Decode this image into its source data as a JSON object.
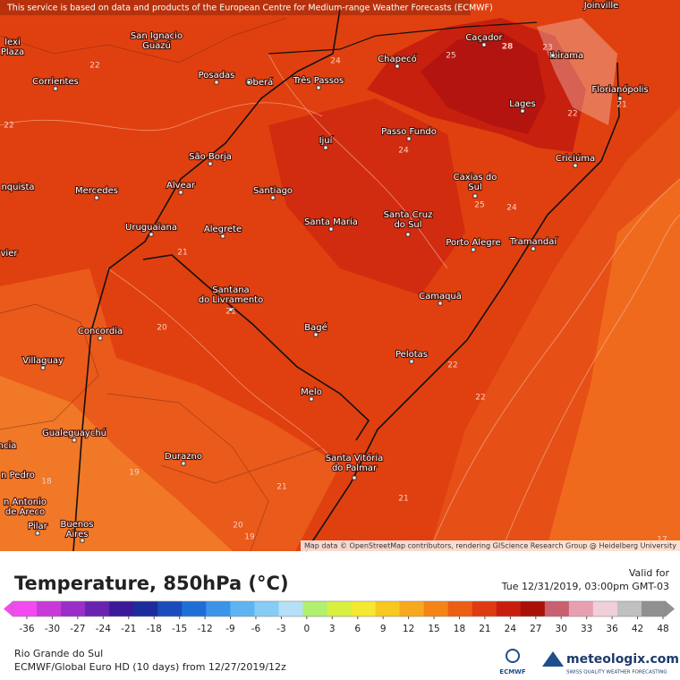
{
  "header_note": "This service is based on data and products of the European Centre for Medium-range Weather Forecasts (ECMWF)",
  "attribution": "Map data © OpenStreetMap contributors, rendering GIScience Research Group @ Heidelberg University",
  "places": [
    {
      "lines": [
        "Joinville"
      ]
    },
    {
      "lines": [
        "Caçador"
      ]
    },
    {
      "lines": [
        "Chapecó"
      ]
    },
    {
      "lines": [
        "Ibirama"
      ]
    },
    {
      "lines": [
        "San Ignacio",
        "Guazú"
      ]
    },
    {
      "lines": [
        "lexi",
        "Plaza"
      ]
    },
    {
      "lines": [
        "Posadas"
      ]
    },
    {
      "lines": [
        "Oberá"
      ]
    },
    {
      "lines": [
        "Três Passos"
      ]
    },
    {
      "lines": [
        "Corrientes"
      ]
    },
    {
      "lines": [
        "Florianópolis"
      ]
    },
    {
      "lines": [
        "Lages"
      ]
    },
    {
      "lines": [
        "Passo Fundo"
      ]
    },
    {
      "lines": [
        "Ijuí"
      ]
    },
    {
      "lines": [
        "São Borja"
      ]
    },
    {
      "lines": [
        "Criciúma"
      ]
    },
    {
      "lines": [
        "Caxias do",
        "Sul"
      ]
    },
    {
      "lines": [
        "Alvear"
      ]
    },
    {
      "lines": [
        "Mercedes"
      ]
    },
    {
      "lines": [
        "Santiago"
      ]
    },
    {
      "lines": [
        "nquista"
      ]
    },
    {
      "lines": [
        "Santa Maria"
      ]
    },
    {
      "lines": [
        "Santa Cruz",
        "do Sul"
      ]
    },
    {
      "lines": [
        "Uruguaiana"
      ]
    },
    {
      "lines": [
        "Alegrete"
      ]
    },
    {
      "lines": [
        "Porto Alegre"
      ]
    },
    {
      "lines": [
        "Tramandaí"
      ]
    },
    {
      "lines": [
        "vier"
      ]
    },
    {
      "lines": [
        "Santana",
        "do Livramento"
      ]
    },
    {
      "lines": [
        "Camaquã"
      ]
    },
    {
      "lines": [
        "Concordia"
      ]
    },
    {
      "lines": [
        "Bagé"
      ]
    },
    {
      "lines": [
        "Villaguay"
      ]
    },
    {
      "lines": [
        "Pelotas"
      ]
    },
    {
      "lines": [
        "Melo"
      ]
    },
    {
      "lines": [
        "Gualeguaychú"
      ]
    },
    {
      "lines": [
        "ncia"
      ]
    },
    {
      "lines": [
        "Durazno"
      ]
    },
    {
      "lines": [
        "Santa Vitória",
        "do Palmar"
      ]
    },
    {
      "lines": [
        "n Pedro"
      ]
    },
    {
      "lines": [
        "n Antonio",
        "de Areco"
      ]
    },
    {
      "lines": [
        "Pilar"
      ]
    },
    {
      "lines": [
        "Buenos",
        "Aires"
      ]
    }
  ],
  "contour_labels": [
    28,
    25,
    23,
    22,
    22,
    24,
    22,
    21,
    24,
    25,
    24,
    21,
    21,
    20,
    22,
    22,
    19,
    18,
    21,
    21,
    20,
    19,
    17
  ],
  "title": "Temperature, 850hPa (°C)",
  "valid_label": "Valid for",
  "valid_time": "Tue 12/31/2019, 03:00pm GMT-03",
  "scale": {
    "ticks": [
      -36,
      -30,
      -27,
      -24,
      -21,
      -18,
      -15,
      -12,
      -9,
      -6,
      -3,
      0,
      3,
      6,
      9,
      12,
      15,
      18,
      21,
      24,
      27,
      30,
      33,
      36,
      42,
      48
    ],
    "colors": [
      "#f24af0",
      "#c83ad8",
      "#9a2ec8",
      "#6a22b0",
      "#3a1a98",
      "#1c2c9c",
      "#1a4cbc",
      "#1e6ed8",
      "#3a94e8",
      "#5eb4f0",
      "#86ccf4",
      "#b4e0f8",
      "#b0f070",
      "#d8f040",
      "#f4e830",
      "#f8c820",
      "#f8a81c",
      "#f48418",
      "#ec5e14",
      "#e03a10",
      "#c81e0e",
      "#a81008",
      "#c86070",
      "#e8a0b0",
      "#f0d0d8",
      "#c0c0c0",
      "#909090"
    ]
  },
  "region": "Rio Grande do Sul",
  "model_run": "ECMWF/Global Euro HD (10 days)  from  12/27/2019/12z",
  "logo_left": "ECMWF",
  "logo_right": "meteologix.com",
  "logo_tagline": "SWISS QUALITY WEATHER FORECASTING"
}
